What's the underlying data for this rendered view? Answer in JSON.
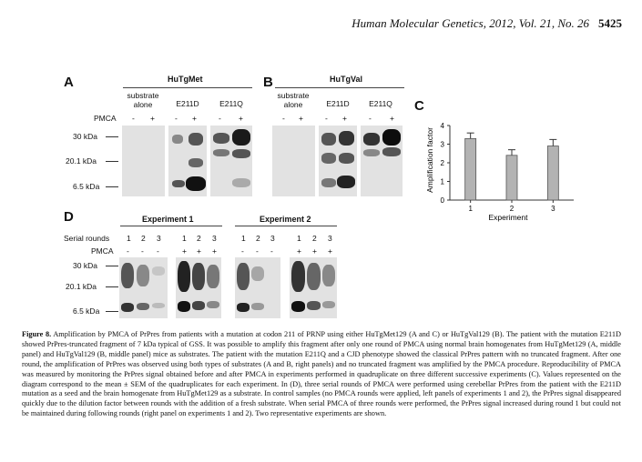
{
  "header": {
    "journal": "Human Molecular Genetics, 2012, Vol. 21, No. 26",
    "page": "5425"
  },
  "panel_a": {
    "letter": "A",
    "group": "HuTgMet",
    "lanes": [
      "substrate alone",
      "E211D",
      "E211Q"
    ]
  },
  "panel_b": {
    "letter": "B",
    "group": "HuTgVal",
    "lanes": [
      "substrate alone",
      "E211D",
      "E211Q"
    ]
  },
  "pmca_label": "PMCA",
  "minus": "-",
  "plus": "+",
  "markers": [
    "30 kDa",
    "20.1 kDa",
    "6.5 kDa"
  ],
  "panel_c": {
    "letter": "C"
  },
  "panel_d": {
    "letter": "D",
    "experiments": [
      "Experiment 1",
      "Experiment 2"
    ],
    "serial_label": "Serial rounds",
    "pmca_label": "PMCA",
    "rounds": [
      "1",
      "2",
      "3"
    ],
    "markers": [
      "30 kDa",
      "20.1 kDa",
      "6.5 kDa"
    ]
  },
  "chart_data": {
    "type": "bar",
    "categories": [
      "1",
      "2",
      "3"
    ],
    "values": [
      3.3,
      2.4,
      2.9
    ],
    "errors": [
      0.3,
      0.3,
      0.35
    ],
    "xlabel": "Experiment",
    "ylabel": "Amplification factor",
    "ylim": [
      0,
      4
    ],
    "yticks": [
      "0",
      "1",
      "2",
      "3",
      "4"
    ],
    "bar_color": "#b3b3b3"
  },
  "caption": {
    "bold": "Figure 8.",
    "text": "Amplification by PMCA of PrPres from patients with a mutation at codon 211 of PRNP using either HuTgMet129 (A and C) or HuTgVal129 (B). The patient with the mutation E211D showed PrPres-truncated fragment of 7 kDa typical of GSS. It was possible to amplify this fragment after only one round of PMCA using normal brain homogenates from HuTgMet129 (A, middle panel) and HuTgVal129 (B, middle panel) mice as substrates. The patient with the mutation E211Q and a CJD phenotype showed the classical PrPres pattern with no truncated fragment. After one round, the amplification of PrPres was observed using both types of substrates (A and B, right panels) and no truncated fragment was amplified by the PMCA procedure. Reproducibility of PMCA was measured by monitoring the PrPres signal obtained before and after PMCA in experiments performed in quadruplicate on three different successive experiments (C). Values represented on the diagram correspond to the mean ± SEM of the quadruplicates for each experiment. In (D), three serial rounds of PMCA were performed using cerebellar PrPres from the patient with the E211D mutation as a seed and the brain homogenate from HuTgMet129 as a substrate. In control samples (no PMCA rounds were applied, left panels of experiments 1 and 2), the PrPres signal disappeared quickly due to the dilution factor between rounds with the addition of a fresh substrate. When serial PMCA of three rounds were performed, the PrPres signal increased during round 1 but could not be maintained during following rounds (right panel on experiments 1 and 2). Two representative experiments are shown."
  }
}
